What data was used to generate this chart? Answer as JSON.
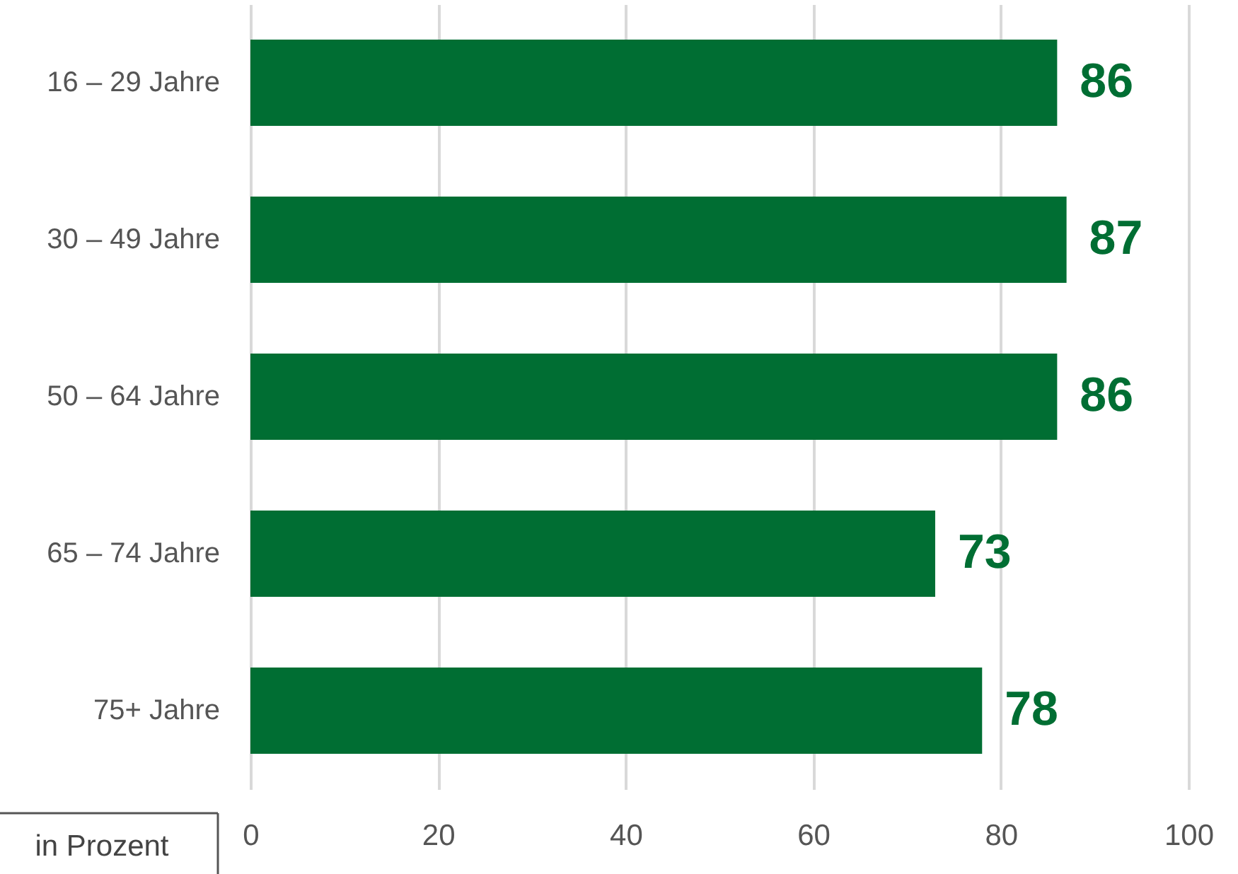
{
  "chart_data": {
    "type": "bar",
    "orientation": "horizontal",
    "categories": [
      "16 – 29 Jahre",
      "30 – 49 Jahre",
      "50 – 64 Jahre",
      "65 – 74 Jahre",
      "75+ Jahre"
    ],
    "values": [
      86,
      87,
      86,
      73,
      78
    ],
    "color": "#006e33",
    "xlim": [
      0,
      100
    ],
    "xticks": [
      0,
      20,
      40,
      60,
      80,
      100
    ],
    "grid": "x",
    "data_labels": true,
    "annotations": [
      "in Prozent"
    ]
  }
}
